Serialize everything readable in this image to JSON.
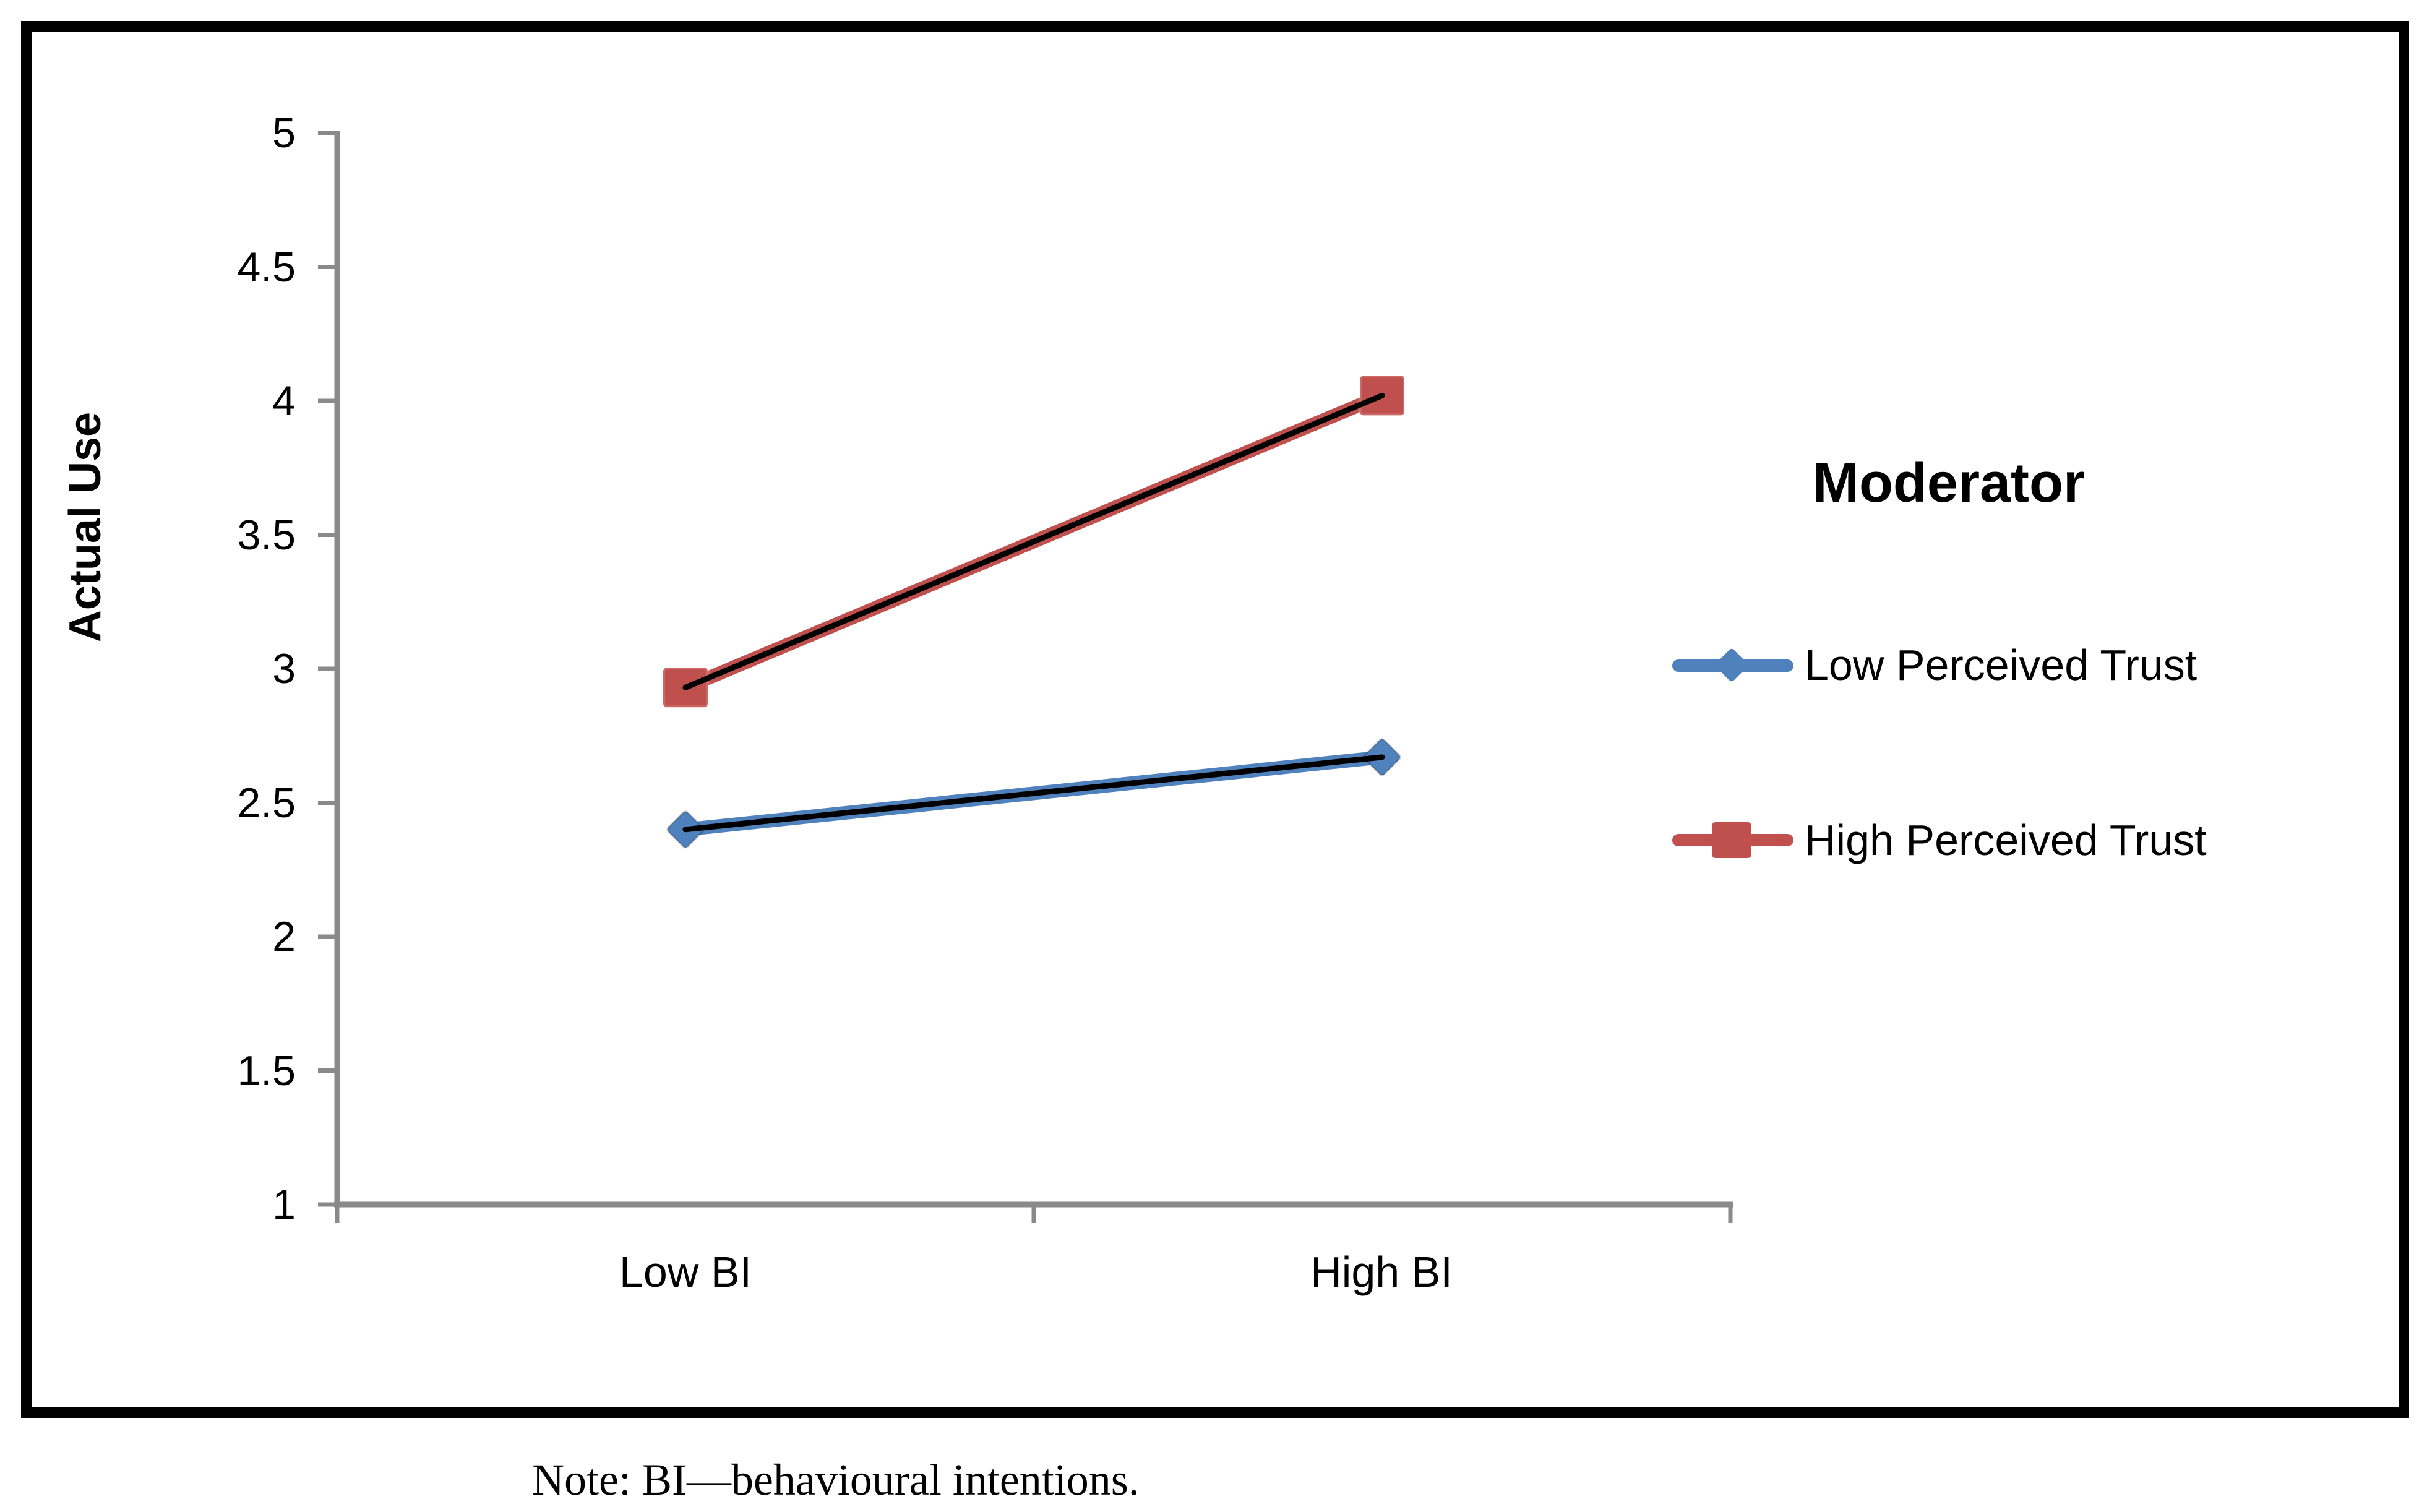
{
  "figure": {
    "y_axis_title": "Actual Use",
    "note": "Note: BI—behavioural intentions.",
    "frame_color": "#000000",
    "background_color": "#ffffff"
  },
  "legend": {
    "title": "Moderator",
    "items": [
      {
        "label": "Low Perceived Trust",
        "marker": "diamond",
        "color": "#4F81BD"
      },
      {
        "label": "High Perceived Trust",
        "marker": "square",
        "color": "#C0504D"
      }
    ]
  },
  "chart_data": {
    "type": "line",
    "categories": [
      "Low BI",
      "High BI"
    ],
    "series": [
      {
        "name": "Low Perceived Trust",
        "values": [
          2.4,
          2.67
        ],
        "color": "#4F81BD",
        "marker": "diamond"
      },
      {
        "name": "High Perceived Trust",
        "values": [
          2.93,
          4.02
        ],
        "color": "#C0504D",
        "marker": "square"
      }
    ],
    "trendline_color": "#000000",
    "ylabel": "Actual Use",
    "ylim": [
      1,
      5
    ],
    "ytick_step": 0.5,
    "yticks": [
      "5",
      "4.5",
      "4",
      "3.5",
      "3",
      "2.5",
      "2",
      "1.5",
      "1"
    ],
    "axis_color": "#8A8A8A",
    "grid": false,
    "legend_title": "Moderator",
    "legend_position": "right"
  }
}
